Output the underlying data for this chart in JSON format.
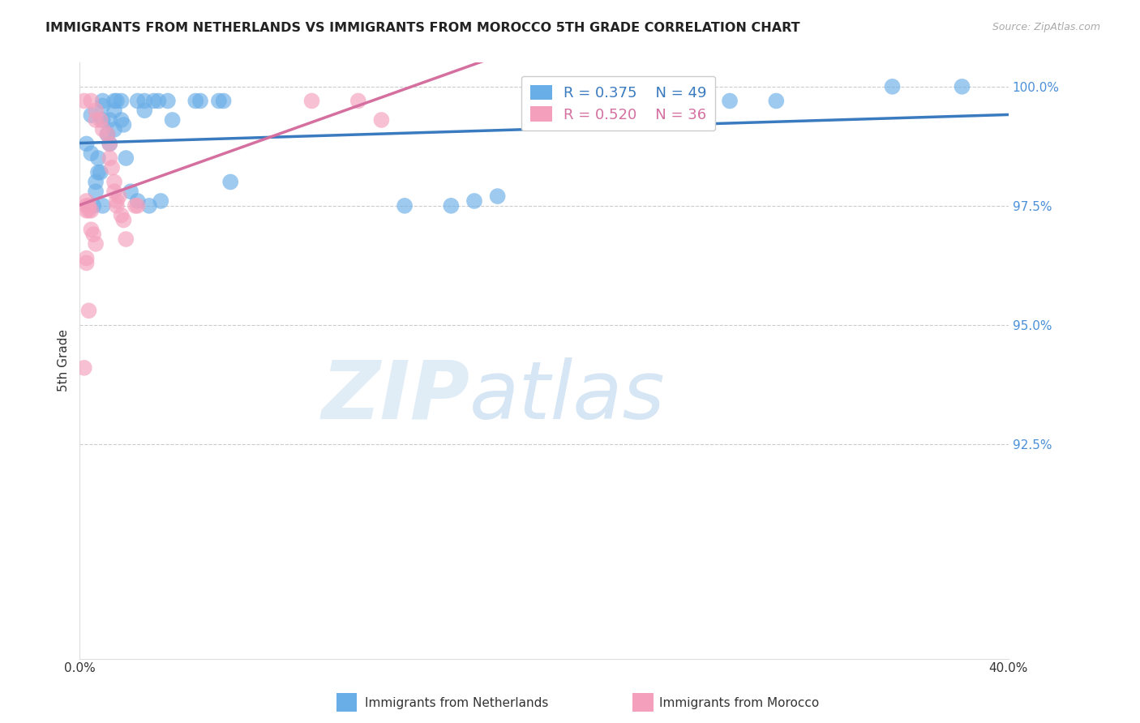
{
  "title": "IMMIGRANTS FROM NETHERLANDS VS IMMIGRANTS FROM MOROCCO 5TH GRADE CORRELATION CHART",
  "source": "Source: ZipAtlas.com",
  "ylabel": "5th Grade",
  "y_tick_labels": [
    "100.0%",
    "97.5%",
    "95.0%",
    "92.5%"
  ],
  "y_tick_values": [
    1.0,
    0.975,
    0.95,
    0.925
  ],
  "x_range": [
    0.0,
    0.4
  ],
  "y_range": [
    0.88,
    1.005
  ],
  "watermark_zip": "ZIP",
  "watermark_atlas": "atlas",
  "legend_blue_label": "Immigrants from Netherlands",
  "legend_pink_label": "Immigrants from Morocco",
  "R_blue": 0.375,
  "N_blue": 49,
  "R_pink": 0.52,
  "N_pink": 36,
  "blue_color": "#6aaee8",
  "pink_color": "#f4a0bc",
  "line_blue_color": "#3a7abf",
  "line_pink_color": "#d46fa0",
  "blue_scatter": [
    [
      0.005,
      0.994
    ],
    [
      0.01,
      0.997
    ],
    [
      0.01,
      0.993
    ],
    [
      0.01,
      0.996
    ],
    [
      0.012,
      0.99
    ],
    [
      0.013,
      0.988
    ],
    [
      0.013,
      0.993
    ],
    [
      0.015,
      0.995
    ],
    [
      0.015,
      0.991
    ],
    [
      0.015,
      0.997
    ],
    [
      0.016,
      0.997
    ],
    [
      0.018,
      0.997
    ],
    [
      0.018,
      0.993
    ],
    [
      0.019,
      0.992
    ],
    [
      0.02,
      0.985
    ],
    [
      0.025,
      0.997
    ],
    [
      0.028,
      0.997
    ],
    [
      0.028,
      0.995
    ],
    [
      0.032,
      0.997
    ],
    [
      0.034,
      0.997
    ],
    [
      0.038,
      0.997
    ],
    [
      0.04,
      0.993
    ],
    [
      0.05,
      0.997
    ],
    [
      0.052,
      0.997
    ],
    [
      0.06,
      0.997
    ],
    [
      0.062,
      0.997
    ],
    [
      0.003,
      0.988
    ],
    [
      0.005,
      0.986
    ],
    [
      0.008,
      0.985
    ],
    [
      0.009,
      0.982
    ],
    [
      0.022,
      0.978
    ],
    [
      0.025,
      0.976
    ],
    [
      0.03,
      0.975
    ],
    [
      0.035,
      0.976
    ],
    [
      0.065,
      0.98
    ],
    [
      0.14,
      0.975
    ],
    [
      0.16,
      0.975
    ],
    [
      0.17,
      0.976
    ],
    [
      0.18,
      0.977
    ],
    [
      0.28,
      0.997
    ],
    [
      0.3,
      0.997
    ],
    [
      0.35,
      1.0
    ],
    [
      0.2,
      0.993
    ],
    [
      0.008,
      0.982
    ],
    [
      0.007,
      0.98
    ],
    [
      0.007,
      0.978
    ],
    [
      0.006,
      0.975
    ],
    [
      0.01,
      0.975
    ],
    [
      0.38,
      1.0
    ]
  ],
  "pink_scatter": [
    [
      0.005,
      0.997
    ],
    [
      0.007,
      0.995
    ],
    [
      0.007,
      0.993
    ],
    [
      0.009,
      0.993
    ],
    [
      0.01,
      0.991
    ],
    [
      0.012,
      0.99
    ],
    [
      0.013,
      0.988
    ],
    [
      0.013,
      0.985
    ],
    [
      0.014,
      0.983
    ],
    [
      0.015,
      0.98
    ],
    [
      0.015,
      0.978
    ],
    [
      0.016,
      0.975
    ],
    [
      0.016,
      0.976
    ],
    [
      0.017,
      0.977
    ],
    [
      0.018,
      0.973
    ],
    [
      0.019,
      0.972
    ],
    [
      0.02,
      0.968
    ],
    [
      0.002,
      0.997
    ],
    [
      0.003,
      0.975
    ],
    [
      0.003,
      0.976
    ],
    [
      0.003,
      0.974
    ],
    [
      0.004,
      0.974
    ],
    [
      0.004,
      0.975
    ],
    [
      0.005,
      0.974
    ],
    [
      0.005,
      0.97
    ],
    [
      0.006,
      0.969
    ],
    [
      0.007,
      0.967
    ],
    [
      0.024,
      0.975
    ],
    [
      0.025,
      0.975
    ],
    [
      0.003,
      0.964
    ],
    [
      0.003,
      0.963
    ],
    [
      0.004,
      0.953
    ],
    [
      0.1,
      0.997
    ],
    [
      0.12,
      0.997
    ],
    [
      0.13,
      0.993
    ],
    [
      0.002,
      0.941
    ]
  ]
}
